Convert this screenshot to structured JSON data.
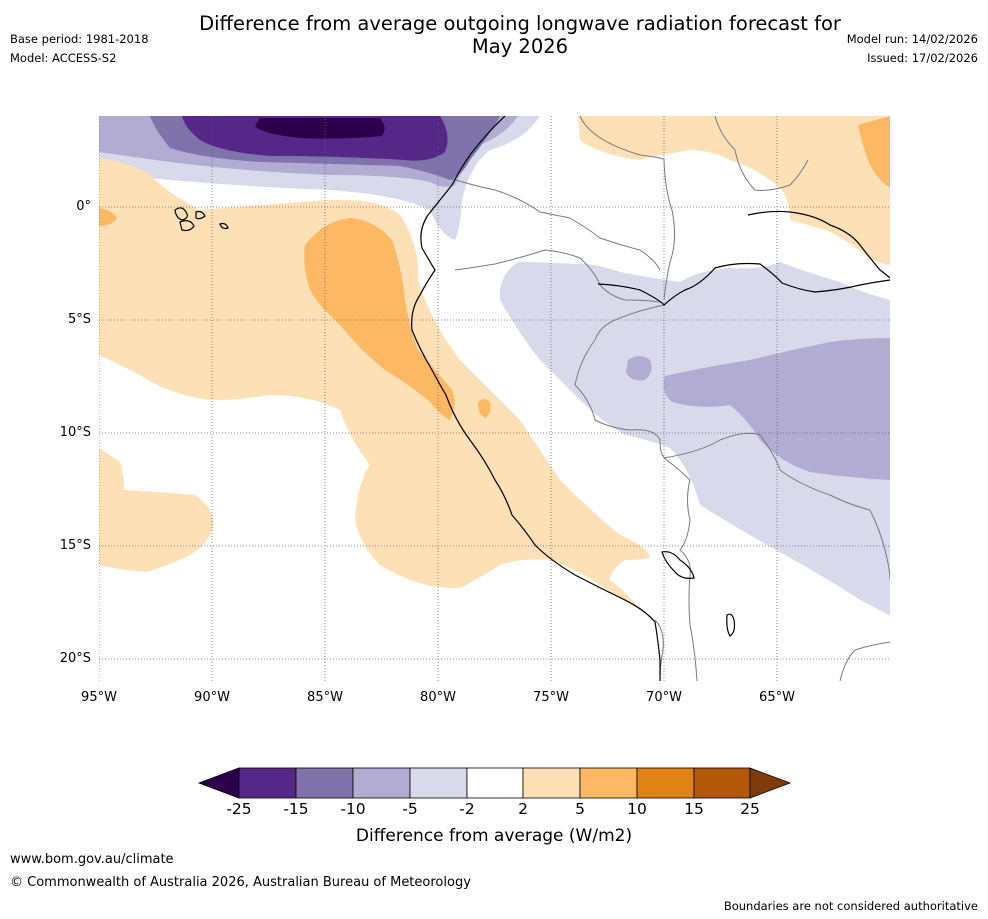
{
  "title_line1": "Difference from average outgoing longwave radiation forecast for",
  "title_line2": "May 2026",
  "base_period": "Base period: 1981-2018",
  "model": "Model: ACCESS-S2",
  "model_run": "Model run: 14/02/2026",
  "issued": "Issued: 17/02/2026",
  "lat_labels": [
    "0°",
    "5°S",
    "10°S",
    "15°S",
    "20°S"
  ],
  "lon_labels": [
    "95°W",
    "90°W",
    "85°W",
    "80°W",
    "75°W",
    "70°W",
    "65°W"
  ],
  "colorbar": {
    "ticks": [
      "-25",
      "-15",
      "-10",
      "-5",
      "-2",
      "2",
      "5",
      "10",
      "15",
      "25"
    ],
    "colors": [
      "#2d004b",
      "#542788",
      "#8073ac",
      "#b2abd2",
      "#d8daeb",
      "#ffffff",
      "#fee0b6",
      "#fdb863",
      "#e08214",
      "#b35806",
      "#7f3b08"
    ],
    "label": "Difference from average (W/m2)"
  },
  "website": "www.bom.gov.au/climate",
  "copyright": "© Commonwealth of Australia 2026, Australian Bureau of Meteorology",
  "disclaimer": "Boundaries are not considered authoritative"
}
